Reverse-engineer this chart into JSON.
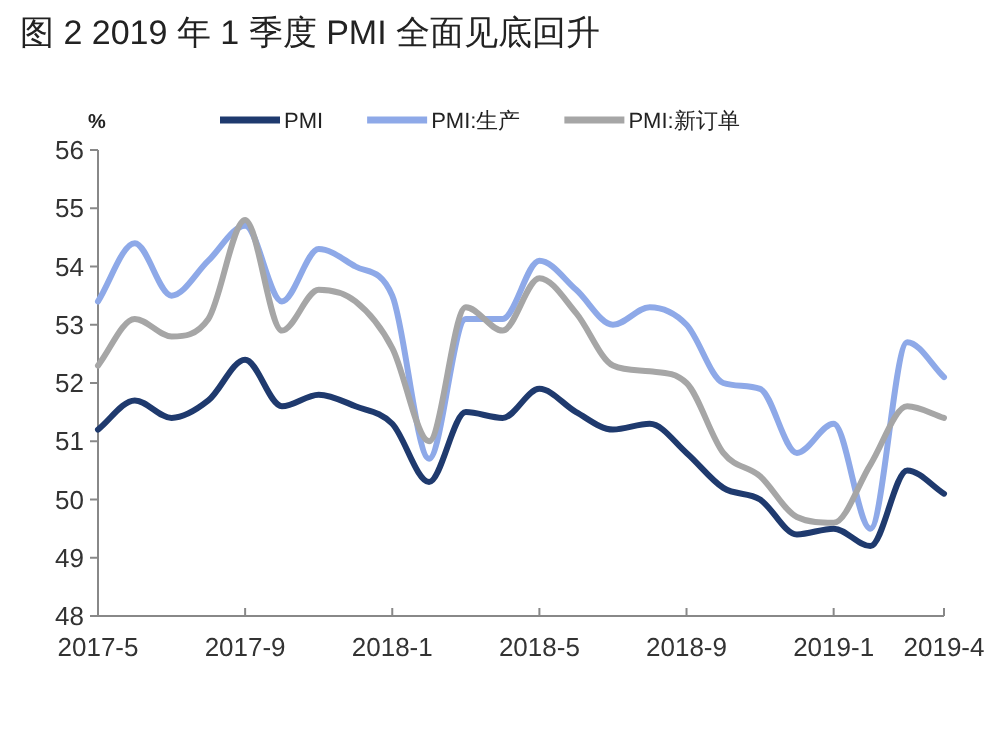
{
  "chart_data": {
    "type": "line",
    "title": "图 2 2019 年 1 季度 PMI 全面见底回升",
    "ylabel": "%",
    "categories": [
      "2017-5",
      null,
      null,
      null,
      "2017-9",
      null,
      null,
      null,
      "2018-1",
      null,
      null,
      null,
      "2018-5",
      null,
      null,
      null,
      "2018-9",
      null,
      null,
      null,
      "2019-1",
      null,
      null,
      "2019-4"
    ],
    "series": [
      {
        "name": "PMI",
        "color": "#1f3a6e",
        "values": [
          51.2,
          51.7,
          51.4,
          51.7,
          52.4,
          51.6,
          51.8,
          51.6,
          51.3,
          50.3,
          51.5,
          51.4,
          51.9,
          51.5,
          51.2,
          51.3,
          50.8,
          50.2,
          50.0,
          49.4,
          49.5,
          49.2,
          50.5,
          50.1
        ]
      },
      {
        "name": "PMI:生产",
        "color": "#8ea9e8",
        "values": [
          53.4,
          54.4,
          53.5,
          54.1,
          54.7,
          53.4,
          54.3,
          54.0,
          53.5,
          50.7,
          53.1,
          53.1,
          54.1,
          53.6,
          53.0,
          53.3,
          53.0,
          52.0,
          51.9,
          50.8,
          51.3,
          49.5,
          52.7,
          52.1
        ]
      },
      {
        "name": "PMI:新订单",
        "color": "#a6a6a6",
        "values": [
          52.3,
          53.1,
          52.8,
          53.1,
          54.8,
          52.9,
          53.6,
          53.4,
          52.6,
          51.0,
          53.3,
          52.9,
          53.8,
          53.2,
          52.3,
          52.2,
          52.0,
          50.8,
          50.4,
          49.7,
          49.6,
          50.6,
          51.6,
          51.4
        ]
      }
    ],
    "ylim": [
      48,
      56
    ],
    "yticks": [
      48,
      49,
      50,
      51,
      52,
      53,
      54,
      55,
      56
    ],
    "grid": false,
    "legend": "top"
  }
}
